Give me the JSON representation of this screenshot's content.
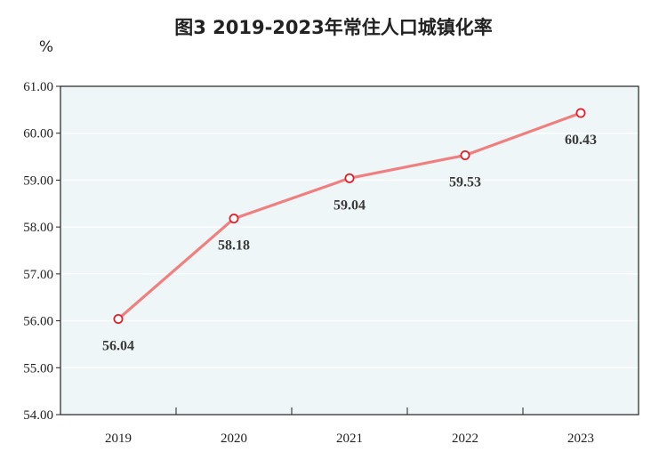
{
  "chart_data": {
    "type": "line",
    "title": "图3  2019-2023年常住人口城镇化率",
    "unit_label": "%",
    "categories": [
      "2019",
      "2020",
      "2021",
      "2022",
      "2023"
    ],
    "series": [
      {
        "values": [
          56.04,
          58.18,
          59.04,
          59.53,
          60.43
        ]
      }
    ],
    "data_labels": [
      "56.04",
      "58.18",
      "59.04",
      "59.53",
      "60.43"
    ],
    "yticks": [
      "54.00",
      "55.00",
      "56.00",
      "57.00",
      "58.00",
      "59.00",
      "60.00",
      "61.00"
    ],
    "ylim": [
      54,
      61
    ],
    "grid": true,
    "legend": "none",
    "colors": {
      "line": "#f08080",
      "marker_stroke": "#e0202a",
      "marker_fill": "#ffffff",
      "plot_background": "#eef6f8",
      "gridline": "#ffffff",
      "axis": "#222222"
    }
  }
}
